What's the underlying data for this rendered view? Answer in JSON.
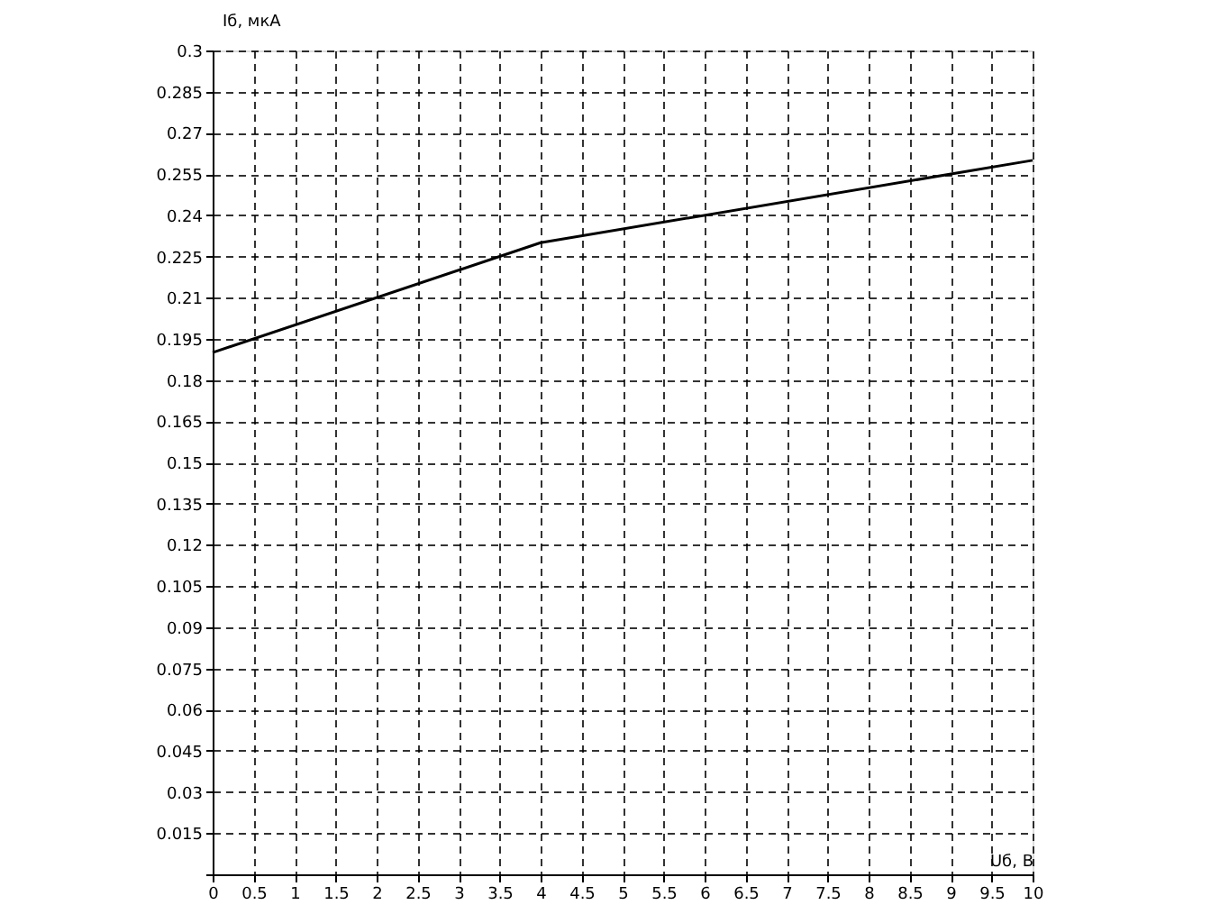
{
  "chart_data": {
    "type": "line",
    "xlabel": "Uб, В",
    "ylabel": "Iб, мкА",
    "x": [
      0,
      4,
      10
    ],
    "series": [
      {
        "color": "#000000",
        "values": [
          0.19,
          0.23,
          0.26
        ]
      }
    ],
    "xlim": [
      0,
      10
    ],
    "ylim": [
      0,
      0.3
    ],
    "xticks": [
      0,
      0.5,
      1,
      1.5,
      2,
      2.5,
      3,
      3.5,
      4,
      4.5,
      5,
      5.5,
      6,
      6.5,
      7,
      7.5,
      8,
      8.5,
      9,
      9.5,
      10
    ],
    "yticks": [
      {
        "value": 0,
        "label": null
      },
      0.015,
      0.03,
      0.045,
      0.06,
      0.075,
      0.09,
      0.105,
      0.12,
      0.135,
      0.15,
      0.165,
      0.18,
      0.195,
      0.21,
      0.225,
      0.24,
      0.255,
      0.27,
      0.285,
      0.3
    ],
    "grid": true,
    "line_style": "solid",
    "marker": "none"
  }
}
